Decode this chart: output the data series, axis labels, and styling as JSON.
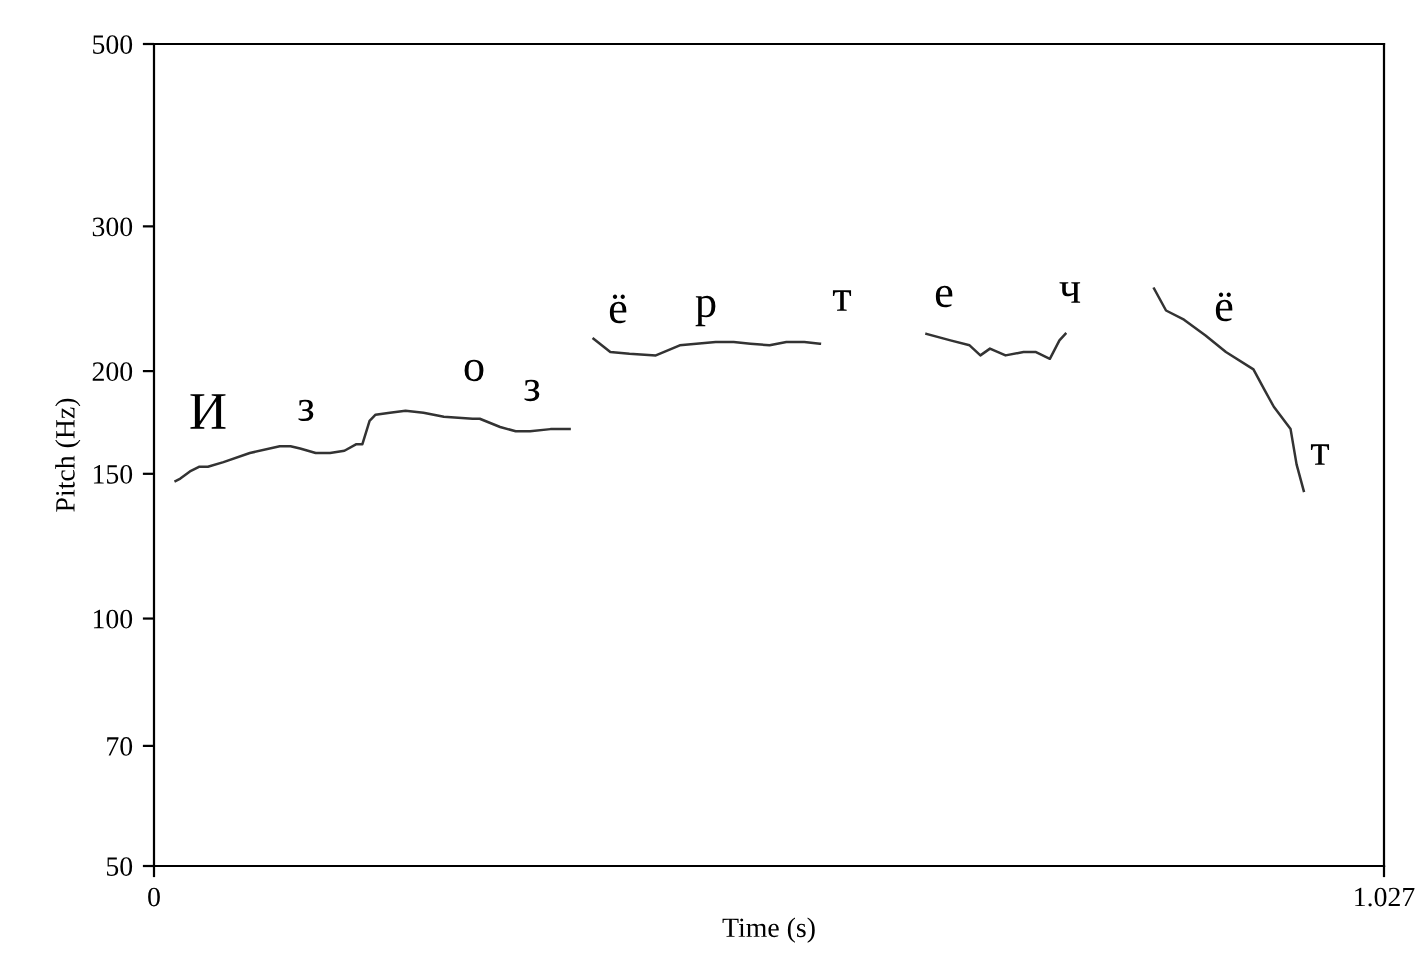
{
  "chart_data": {
    "type": "line",
    "xlabel": "Time (s)",
    "ylabel": "Pitch (Hz)",
    "log": "y",
    "grid": false,
    "marker": "none",
    "line_style": "solid",
    "xlim": [
      0,
      1.027
    ],
    "xticks": [
      0,
      1.027
    ],
    "ylim": [
      50,
      500
    ],
    "yticks": [
      50,
      70,
      100,
      150,
      200,
      300,
      500
    ],
    "x": [
      0.018,
      0.022,
      0.03,
      0.038,
      0.045,
      0.058,
      0.08,
      0.105,
      0.114,
      0.122,
      0.135,
      0.147,
      0.159,
      0.169,
      0.174,
      0.18,
      0.185,
      0.197,
      0.21,
      0.225,
      0.242,
      0.266,
      0.272,
      0.289,
      0.302,
      0.314,
      0.331,
      0.347,
      0.357,
      0.367,
      0.381,
      0.397,
      0.419,
      0.439,
      0.469,
      0.484,
      0.498,
      0.514,
      0.528,
      0.543,
      0.556,
      0.6,
      0.645,
      0.665,
      0.681,
      0.69,
      0.698,
      0.711,
      0.726,
      0.736,
      0.748,
      0.756,
      0.761,
      0.8,
      0.835,
      0.845,
      0.86,
      0.878,
      0.895,
      0.918,
      0.927,
      0.935,
      0.949,
      0.954,
      0.96
    ],
    "series": [
      {
        "color": "#333333",
        "values": [
          147,
          148,
          151,
          153,
          153,
          155,
          159,
          162,
          162,
          161,
          159,
          159,
          160,
          163,
          163,
          174,
          177,
          178,
          179,
          178,
          176,
          175,
          175,
          171,
          169,
          169,
          170,
          170,
          null,
          219,
          211,
          210,
          209,
          215,
          217,
          217,
          216,
          215,
          217,
          217,
          216,
          null,
          222,
          218,
          215,
          209,
          213,
          209,
          211,
          211,
          207,
          218,
          222,
          null,
          252,
          237,
          231,
          221,
          211,
          201,
          190,
          181,
          170,
          154,
          143
        ]
      }
    ],
    "annotations": [
      "И",
      "з",
      "о",
      "з",
      "ё",
      "р",
      "т",
      "е",
      "ч",
      "ё",
      "т"
    ]
  }
}
